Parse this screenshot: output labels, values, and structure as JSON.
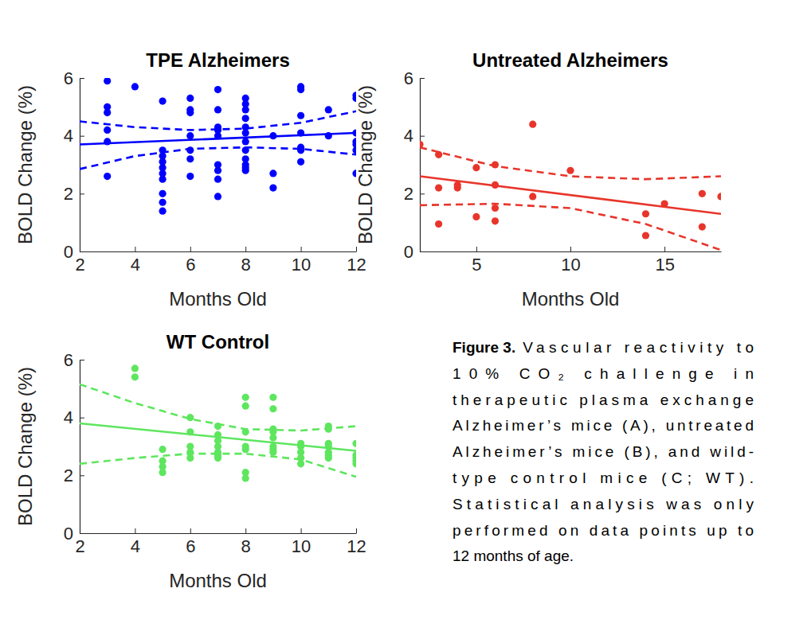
{
  "chart_data": [
    {
      "type": "scatter",
      "title": "TPE Alzheimers",
      "x_label": "Months Old",
      "y_label": "BOLD Change (%)",
      "xlim": [
        2,
        12
      ],
      "xticks": [
        2,
        4,
        6,
        8,
        10,
        12
      ],
      "ylim": [
        0,
        6
      ],
      "yticks": [
        0,
        2,
        4,
        6
      ],
      "grid": false,
      "series": [
        {
          "type": "scatter",
          "marker": "circle",
          "color": "#0000ff",
          "x": [
            3,
            3,
            3,
            3,
            3,
            3,
            4,
            5,
            5,
            5,
            5,
            5,
            5,
            5,
            5,
            5,
            5,
            6,
            6,
            6,
            6,
            6,
            6,
            6,
            7,
            7,
            7,
            7,
            7,
            7,
            7,
            7,
            7,
            8,
            8,
            8,
            8,
            8,
            8,
            8,
            8,
            8,
            8,
            8,
            8,
            9,
            9,
            9,
            10,
            10,
            10,
            10,
            10,
            10,
            10,
            11,
            11,
            12,
            12,
            12,
            12,
            12,
            12,
            12
          ],
          "values": [
            5.9,
            5.0,
            4.8,
            4.2,
            3.8,
            2.6,
            5.7,
            5.2,
            3.5,
            3.3,
            3.1,
            2.9,
            2.7,
            2.5,
            2.0,
            1.7,
            1.4,
            5.3,
            4.9,
            4.8,
            4.0,
            3.5,
            3.2,
            2.6,
            5.6,
            4.9,
            4.3,
            4.2,
            4.0,
            3.0,
            2.8,
            2.5,
            1.9,
            5.3,
            5.1,
            4.9,
            4.6,
            4.3,
            4.1,
            3.8,
            3.5,
            3.2,
            3.0,
            2.9,
            2.8,
            4.0,
            2.7,
            2.2,
            5.7,
            5.6,
            4.7,
            4.1,
            3.6,
            3.5,
            3.1,
            4.9,
            4.0,
            5.4,
            5.3,
            4.1,
            3.8,
            3.7,
            3.5,
            2.7
          ]
        },
        {
          "type": "line",
          "line_style": "solid",
          "color": "#0000ff",
          "x": [
            2,
            12
          ],
          "values": [
            3.7,
            4.1
          ]
        },
        {
          "type": "line",
          "line_style": "dashed",
          "color": "#0000ff",
          "x": [
            2,
            4,
            6,
            8,
            10,
            12
          ],
          "values": [
            4.5,
            4.3,
            4.2,
            4.25,
            4.45,
            4.85
          ]
        },
        {
          "type": "line",
          "line_style": "dashed",
          "color": "#0000ff",
          "x": [
            2,
            4,
            6,
            8,
            10,
            12
          ],
          "values": [
            2.85,
            3.3,
            3.55,
            3.6,
            3.55,
            3.35
          ]
        }
      ]
    },
    {
      "type": "scatter",
      "title": "Untreated Alzheimers",
      "x_label": "Months Old",
      "y_label": "BOLD Change (%)",
      "xlim": [
        2,
        18
      ],
      "xticks": [
        5,
        10,
        15
      ],
      "ylim": [
        0,
        6
      ],
      "yticks": [
        0,
        2,
        4,
        6
      ],
      "grid": false,
      "series": [
        {
          "type": "scatter",
          "marker": "circle",
          "color": "#e8352b",
          "x": [
            2,
            3,
            3,
            3,
            4,
            4,
            5,
            5,
            6,
            6,
            6,
            6,
            8,
            8,
            10,
            14,
            14,
            15,
            17,
            17,
            18
          ],
          "values": [
            3.7,
            3.35,
            2.2,
            0.95,
            2.3,
            2.2,
            2.9,
            1.2,
            3.0,
            2.3,
            1.5,
            1.05,
            4.4,
            1.9,
            2.8,
            1.3,
            0.55,
            1.65,
            2.0,
            0.85,
            1.9
          ]
        },
        {
          "type": "line",
          "line_style": "solid",
          "color": "#e8352b",
          "x": [
            2,
            18
          ],
          "values": [
            2.6,
            1.3
          ]
        },
        {
          "type": "line",
          "line_style": "dashed",
          "color": "#e8352b",
          "x": [
            2,
            6,
            10,
            14,
            18
          ],
          "values": [
            3.6,
            2.95,
            2.6,
            2.5,
            2.6
          ]
        },
        {
          "type": "line",
          "line_style": "dashed",
          "color": "#e8352b",
          "x": [
            2,
            6,
            10,
            14,
            18
          ],
          "values": [
            1.6,
            1.65,
            1.5,
            0.95,
            0.05
          ]
        }
      ]
    },
    {
      "type": "scatter",
      "title": "WT Control",
      "x_label": "Months Old",
      "y_label": "BOLD Change (%)",
      "xlim": [
        2,
        12
      ],
      "xticks": [
        2,
        4,
        6,
        8,
        10,
        12
      ],
      "ylim": [
        0,
        6
      ],
      "yticks": [
        0,
        2,
        4,
        6
      ],
      "grid": false,
      "series": [
        {
          "type": "scatter",
          "marker": "circle",
          "color": "#5ee65e",
          "x": [
            4,
            4,
            5,
            5,
            5,
            5,
            6,
            6,
            6,
            6,
            6,
            7,
            7,
            7,
            7,
            7,
            7,
            7,
            8,
            8,
            8,
            8,
            8,
            8,
            8,
            9,
            9,
            9,
            9,
            9,
            9,
            9,
            9,
            10,
            10,
            10,
            10,
            10,
            11,
            11,
            11,
            11,
            11,
            11,
            11,
            12,
            12,
            12,
            12,
            12
          ],
          "values": [
            5.7,
            5.4,
            2.9,
            2.5,
            2.3,
            2.1,
            4.0,
            3.5,
            3.0,
            2.8,
            2.6,
            3.7,
            3.4,
            3.2,
            3.0,
            2.8,
            2.7,
            2.6,
            4.7,
            4.4,
            3.5,
            3.0,
            2.9,
            2.1,
            1.9,
            4.7,
            4.3,
            3.6,
            3.5,
            3.3,
            3.0,
            2.9,
            2.8,
            3.1,
            3.0,
            2.8,
            2.6,
            2.4,
            3.7,
            3.6,
            3.1,
            3.0,
            2.8,
            2.7,
            2.6,
            3.1,
            2.7,
            2.6,
            2.5,
            2.4
          ]
        },
        {
          "type": "line",
          "line_style": "solid",
          "color": "#5ee65e",
          "x": [
            2,
            12
          ],
          "values": [
            3.8,
            2.85
          ]
        },
        {
          "type": "line",
          "line_style": "dashed",
          "color": "#5ee65e",
          "x": [
            2,
            4,
            6,
            8,
            10,
            12
          ],
          "values": [
            5.15,
            4.5,
            3.95,
            3.6,
            3.55,
            3.7
          ]
        },
        {
          "type": "line",
          "line_style": "dashed",
          "color": "#5ee65e",
          "x": [
            2,
            4,
            6,
            8,
            10,
            12
          ],
          "values": [
            2.4,
            2.6,
            2.75,
            2.75,
            2.55,
            1.95
          ]
        }
      ]
    }
  ],
  "caption": {
    "label": "Figure 3.",
    "lines": [
      "Vascular reactivity to",
      "10% CO₂ challenge in",
      "therapeutic plasma exchange",
      "Alzheimer’s mice (A), untreated",
      "Alzheimer’s mice (B), and wild-",
      "type control mice (C; WT).",
      "Statistical analysis was only",
      "performed on data points up to",
      "12 months of age."
    ]
  }
}
